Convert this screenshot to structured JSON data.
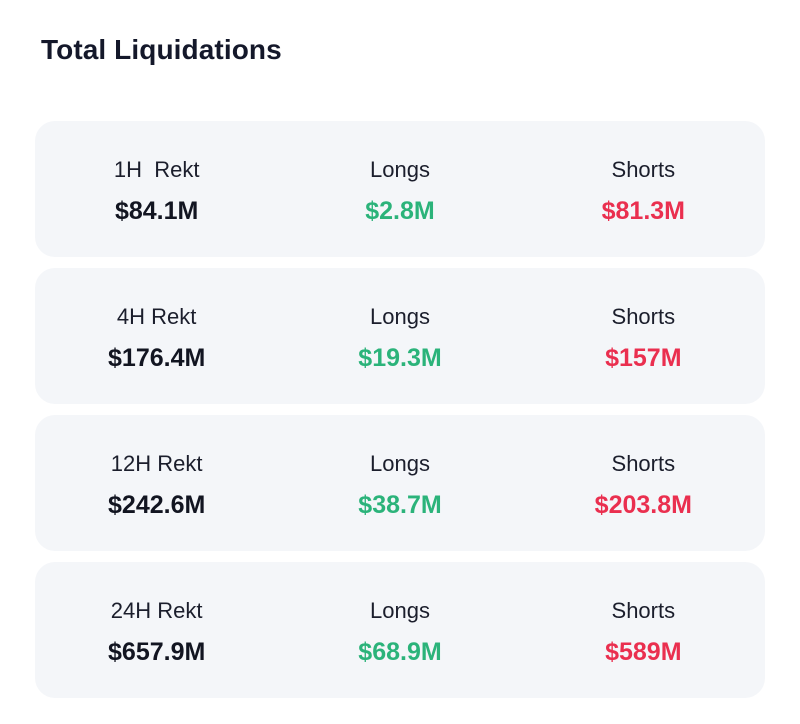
{
  "title": "Total Liquidations",
  "colors": {
    "total": "#121521",
    "long": "#2bb37a",
    "short": "#ea2f4f",
    "card_bg": "#f4f6f9"
  },
  "rows": [
    {
      "period_label": "1H  Rekt",
      "total": "$84.1M",
      "longs_label": "Longs",
      "longs": "$2.8M",
      "shorts_label": "Shorts",
      "shorts": "$81.3M"
    },
    {
      "period_label": "4H Rekt",
      "total": "$176.4M",
      "longs_label": "Longs",
      "longs": "$19.3M",
      "shorts_label": "Shorts",
      "shorts": "$157M"
    },
    {
      "period_label": "12H Rekt",
      "total": "$242.6M",
      "longs_label": "Longs",
      "longs": "$38.7M",
      "shorts_label": "Shorts",
      "shorts": "$203.8M"
    },
    {
      "period_label": "24H Rekt",
      "total": "$657.9M",
      "longs_label": "Longs",
      "longs": "$68.9M",
      "shorts_label": "Shorts",
      "shorts": "$589M"
    }
  ]
}
